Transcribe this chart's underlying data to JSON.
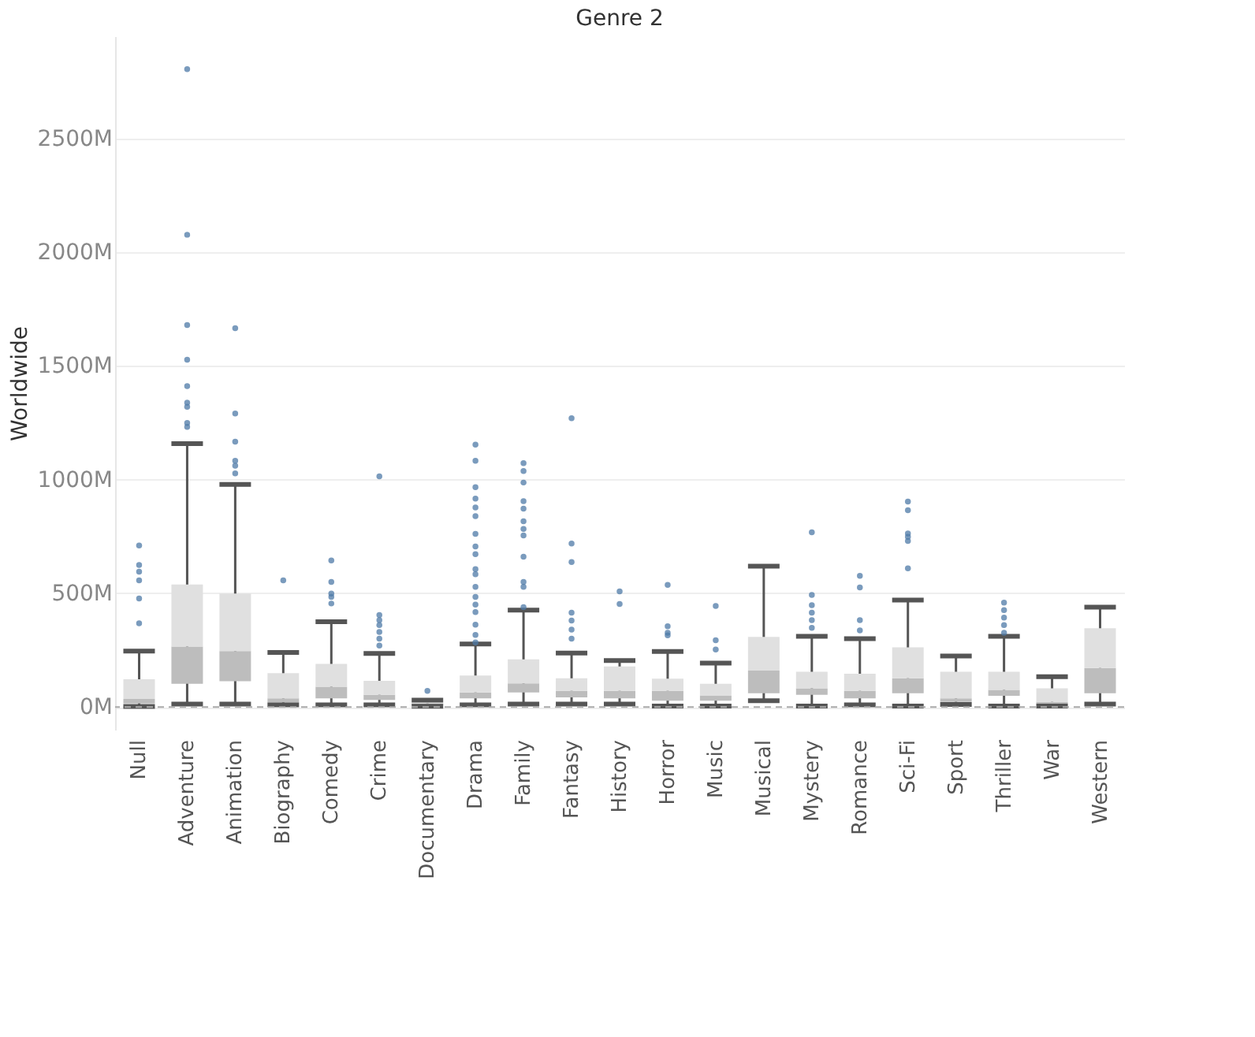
{
  "chart_data": {
    "type": "box",
    "title": "Genre 2",
    "ylabel": "Worldwide",
    "categories": [
      "Null",
      "Adventure",
      "Animation",
      "Biography",
      "Comedy",
      "Crime",
      "Documentary",
      "Drama",
      "Family",
      "Fantasy",
      "History",
      "Horror",
      "Music",
      "Musical",
      "Mystery",
      "Romance",
      "Sci-Fi",
      "Sport",
      "Thriller",
      "War",
      "Western"
    ],
    "boxes": [
      {
        "low": 2,
        "q1": 15,
        "median": 35,
        "q3": 122,
        "high": 246,
        "outliers": [
          368,
          477,
          557,
          595,
          624,
          710
        ]
      },
      {
        "low": 13,
        "q1": 102,
        "median": 266,
        "q3": 539,
        "high": 1158,
        "outliers": [
          1232,
          1249,
          1320,
          1338,
          1411,
          1527,
          1680,
          2077,
          2805
        ]
      },
      {
        "low": 13,
        "q1": 113,
        "median": 246,
        "q3": 499,
        "high": 979,
        "outliers": [
          1027,
          1061,
          1083,
          1167,
          1291,
          1666
        ]
      },
      {
        "low": 9,
        "q1": 20,
        "median": 38,
        "q3": 149,
        "high": 240,
        "outliers": [
          557
        ]
      },
      {
        "low": 9,
        "q1": 38,
        "median": 89,
        "q3": 189,
        "high": 375,
        "outliers": [
          455,
          484,
          499,
          550,
          644
        ]
      },
      {
        "low": 9,
        "q1": 31,
        "median": 53,
        "q3": 115,
        "high": 235,
        "outliers": [
          270,
          300,
          330,
          360,
          382,
          404,
          1014
        ]
      },
      {
        "low": 3,
        "q1": 8,
        "median": 15,
        "q3": 22,
        "high": 30,
        "outliers": [
          71
        ]
      },
      {
        "low": 9,
        "q1": 38,
        "median": 64,
        "q3": 138,
        "high": 277,
        "outliers": [
          284,
          317,
          362,
          417,
          450,
          484,
          528,
          584,
          606,
          672,
          706,
          761,
          839,
          877,
          916,
          967,
          1083,
          1154
        ]
      },
      {
        "low": 13,
        "q1": 64,
        "median": 104,
        "q3": 209,
        "high": 426,
        "outliers": [
          439,
          528,
          550,
          661,
          754,
          783,
          817,
          872,
          905,
          987,
          1038,
          1072
        ]
      },
      {
        "low": 13,
        "q1": 42,
        "median": 71,
        "q3": 126,
        "high": 237,
        "outliers": [
          300,
          340,
          380,
          415,
          637,
          719,
          1270
        ]
      },
      {
        "low": 13,
        "q1": 38,
        "median": 71,
        "q3": 178,
        "high": 204,
        "outliers": [
          453,
          508
        ]
      },
      {
        "low": 4,
        "q1": 27,
        "median": 71,
        "q3": 124,
        "high": 244,
        "outliers": [
          315,
          326,
          355,
          537
        ]
      },
      {
        "low": 4,
        "q1": 27,
        "median": 49,
        "q3": 102,
        "high": 193,
        "outliers": [
          253,
          293,
          444
        ]
      },
      {
        "low": 27,
        "q1": 60,
        "median": 160,
        "q3": 308,
        "high": 619
      },
      {
        "low": 4,
        "q1": 53,
        "median": 82,
        "q3": 155,
        "high": 311,
        "outliers": [
          348,
          382,
          415,
          448,
          493,
          768
        ]
      },
      {
        "low": 9,
        "q1": 38,
        "median": 71,
        "q3": 146,
        "high": 300,
        "outliers": [
          337,
          382,
          526,
          577
        ]
      },
      {
        "low": 4,
        "q1": 60,
        "median": 126,
        "q3": 262,
        "high": 470,
        "outliers": [
          610,
          730,
          748,
          763,
          865,
          903
        ]
      },
      {
        "low": 11,
        "q1": 22,
        "median": 38,
        "q3": 155,
        "high": 224
      },
      {
        "low": 4,
        "q1": 49,
        "median": 75,
        "q3": 155,
        "high": 311,
        "outliers": [
          326,
          360,
          393,
          426,
          459
        ]
      },
      {
        "low": 4,
        "q1": 13,
        "median": 22,
        "q3": 82,
        "high": 133
      },
      {
        "low": 13,
        "q1": 60,
        "median": 171,
        "q3": 346,
        "high": 439
      }
    ],
    "color": "#bdbdbd",
    "ylim": [
      -100,
      2950
    ],
    "yticks": [
      {
        "value": 0,
        "label": "0M"
      },
      {
        "value": 500,
        "label": "500M"
      },
      {
        "value": 1000,
        "label": "1000M"
      },
      {
        "value": 1500,
        "label": "1500M"
      },
      {
        "value": 2000,
        "label": "2000M"
      },
      {
        "value": 2500,
        "label": "2500M"
      }
    ],
    "grid": "y",
    "ref_lines": [
      {
        "axis": "y",
        "value": 0,
        "color": "#aaaaaa",
        "line_style": "dashed"
      }
    ]
  }
}
